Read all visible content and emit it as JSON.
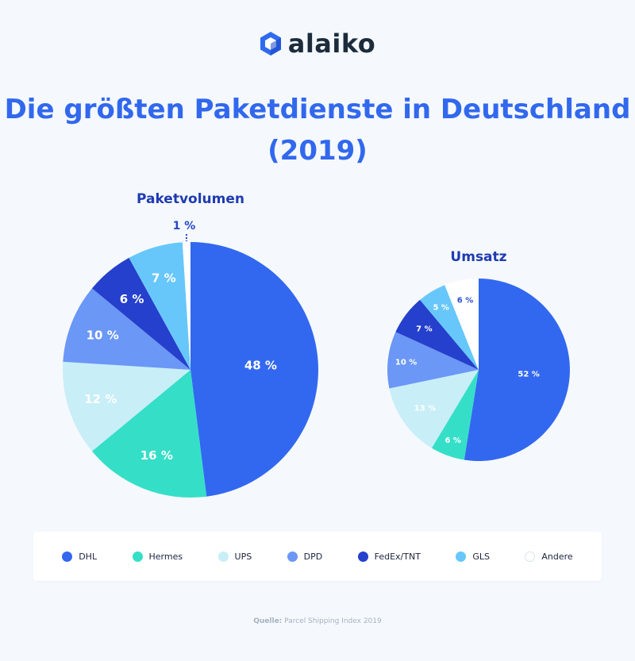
{
  "logo": {
    "text": "alaiko"
  },
  "title": {
    "line1": "Die größten Paketdienste in Deutschland",
    "line2": "(2019)"
  },
  "colors": {
    "DHL": "#3268f0",
    "Hermes": "#35dfc7",
    "UPS": "#c8eef7",
    "DPD": "#6b97f6",
    "FedEx/TNT": "#2540cc",
    "GLS": "#67c7fb",
    "Andere": "#ffffff",
    "title": "#3168ee",
    "chart_title": "#1f3ab0"
  },
  "chart_data": [
    {
      "type": "pie",
      "title": "Paketvolumen",
      "unit": "%",
      "categories": [
        "DHL",
        "Hermes",
        "UPS",
        "DPD",
        "FedEx/TNT",
        "GLS",
        "Andere"
      ],
      "values": [
        48,
        16,
        12,
        10,
        6,
        7,
        1
      ],
      "labels": [
        "48 %",
        "16 %",
        "12 %",
        "10 %",
        "6 %",
        "7 %",
        "1 %"
      ]
    },
    {
      "type": "pie",
      "title": "Umsatz",
      "unit": "%",
      "categories": [
        "DHL",
        "Hermes",
        "UPS",
        "DPD",
        "FedEx/TNT",
        "GLS",
        "Andere"
      ],
      "values": [
        52,
        6,
        13,
        10,
        7,
        5,
        6
      ],
      "labels": [
        "52 %",
        "6 %",
        "13 %",
        "10 %",
        "7 %",
        "5 %",
        "6 %"
      ]
    }
  ],
  "legend": {
    "items": [
      "DHL",
      "Hermes",
      "UPS",
      "DPD",
      "FedEx/TNT",
      "GLS",
      "Andere"
    ]
  },
  "source": {
    "label": "Quelle:",
    "text": "Parcel Shipping Index 2019"
  }
}
